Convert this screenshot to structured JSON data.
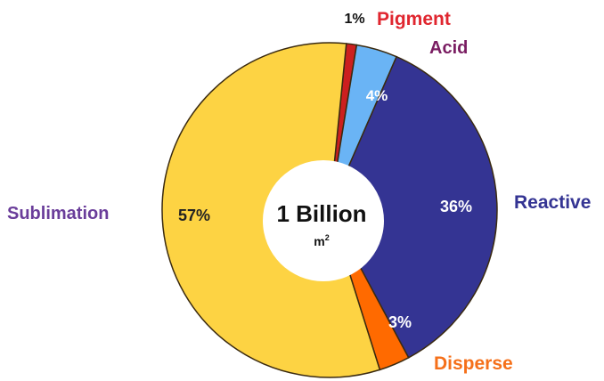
{
  "chart_data": {
    "type": "pie",
    "title": "",
    "center_label": "1 Billion",
    "center_unit": "m",
    "center_unit_sup": "2",
    "slices": [
      {
        "name": "Pigment",
        "value": 1,
        "value_label": "1%",
        "color": "#cc1f1f",
        "name_color": "#e0262f",
        "value_color": "#111111"
      },
      {
        "name": "Acid",
        "value": 4,
        "value_label": "4%",
        "color": "#6ab4f5",
        "name_color": "#7a1d62",
        "value_color": "#ffffff"
      },
      {
        "name": "Reactive",
        "value": 36,
        "value_label": "36%",
        "color": "#343493",
        "name_color": "#343493",
        "value_color": "#ffffff"
      },
      {
        "name": "Disperse",
        "value": 3,
        "value_label": "3%",
        "color": "#ff6a00",
        "name_color": "#f5701a",
        "value_color": "#ffffff"
      },
      {
        "name": "Sublimation",
        "value": 57,
        "value_label": "57%",
        "color": "#fdd343",
        "name_color": "#6a3d9a",
        "value_color": "#222222"
      }
    ],
    "legend": "none"
  }
}
